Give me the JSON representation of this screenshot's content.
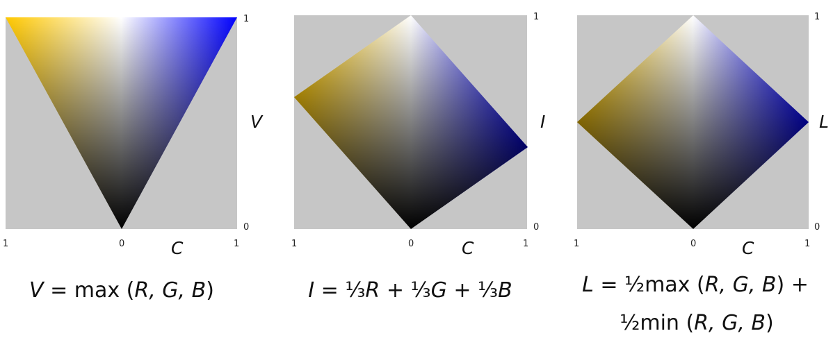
{
  "colors": {
    "background": "#c6c6c6",
    "warm_primary": "#ffc800",
    "cool_primary": "#0000ff",
    "white_point": "#ffffff",
    "black_point": "#000000"
  },
  "panels": [
    {
      "shape": "inverted-triangle",
      "axis": {
        "x_left": "1",
        "x_center": "0",
        "x_right": "1",
        "x_label": "C",
        "y_top": "1",
        "y_bottom": "0",
        "y_label": "V"
      },
      "formula": {
        "var": "V",
        "eq": " = max (",
        "args": "R, G, B",
        "close": ")"
      }
    },
    {
      "shape": "rotated-square",
      "axis": {
        "x_left": "1",
        "x_center": "0",
        "x_right": "1",
        "x_label": "C",
        "y_top": "1",
        "y_bottom": "0",
        "y_label": "I"
      },
      "formula": {
        "var": "I",
        "eq": " = ⅓",
        "a": "R",
        "p1": " + ⅓",
        "b": "G",
        "p2": " + ⅓",
        "c": "B"
      }
    },
    {
      "shape": "diamond",
      "axis": {
        "x_left": "1",
        "x_center": "0",
        "x_right": "1",
        "x_label": "C",
        "y_top": "1",
        "y_bottom": "0",
        "y_label": "L"
      },
      "formula": {
        "line1": {
          "var": "L",
          "eq": " = ½max (",
          "args": "R, G, B",
          "close": ") +"
        },
        "line2": {
          "pre": "½min (",
          "args": "R, G, B",
          "close": ")"
        }
      }
    }
  ]
}
